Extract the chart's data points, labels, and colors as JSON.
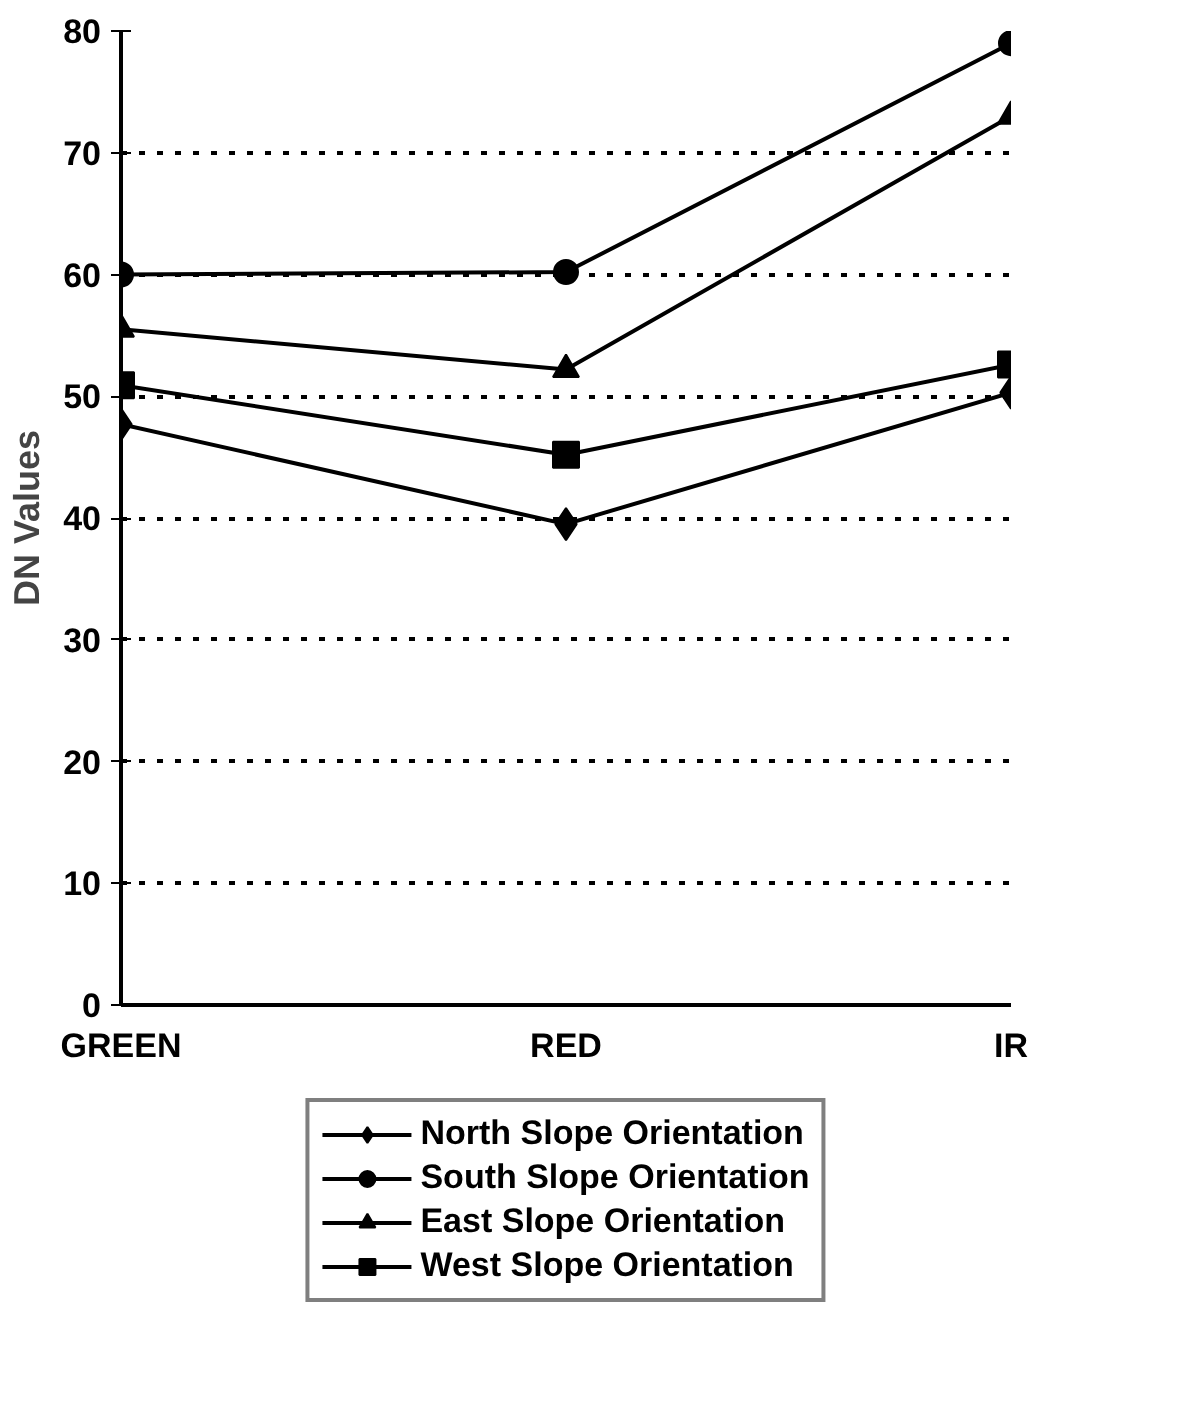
{
  "chart_data": {
    "type": "line",
    "ylabel": "DN Values",
    "categories": [
      "GREEN",
      "RED",
      "IR"
    ],
    "ylim": [
      0,
      80
    ],
    "yticks": [
      0,
      10,
      20,
      30,
      40,
      50,
      60,
      70,
      80
    ],
    "grid": "y",
    "legend": "bottom",
    "line_style": "solid",
    "series": [
      {
        "name": "North Slope Orientation",
        "color": "#000000",
        "marker": "diamond",
        "values": [
          47.7,
          39.5,
          50.3
        ]
      },
      {
        "name": "South Slope Orientation",
        "color": "#000000",
        "marker": "circle",
        "values": [
          60,
          60.2,
          79
        ]
      },
      {
        "name": "East Slope Orientation",
        "color": "#000000",
        "marker": "triangle",
        "values": [
          55.5,
          52.2,
          73
        ]
      },
      {
        "name": "West Slope Orientation",
        "color": "#000000",
        "marker": "square",
        "values": [
          50.9,
          45.2,
          52.6
        ]
      }
    ]
  }
}
